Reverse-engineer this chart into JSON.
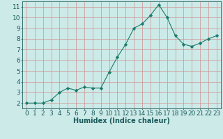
{
  "x": [
    0,
    1,
    2,
    3,
    4,
    5,
    6,
    7,
    8,
    9,
    10,
    11,
    12,
    13,
    14,
    15,
    16,
    17,
    18,
    19,
    20,
    21,
    22,
    23
  ],
  "y": [
    2.0,
    2.0,
    2.0,
    2.3,
    3.0,
    3.4,
    3.2,
    3.5,
    3.4,
    3.4,
    4.9,
    6.3,
    7.5,
    9.0,
    9.4,
    10.2,
    11.2,
    10.0,
    8.3,
    7.5,
    7.3,
    7.6,
    8.0,
    8.3
  ],
  "line_color": "#1a7a6a",
  "marker": "D",
  "marker_size": 2.2,
  "bg_color": "#cceae8",
  "grid_color": "#d09090",
  "xlabel": "Humidex (Indice chaleur)",
  "xlim": [
    -0.5,
    23.5
  ],
  "ylim": [
    1.5,
    11.5
  ],
  "yticks": [
    2,
    3,
    4,
    5,
    6,
    7,
    8,
    9,
    10,
    11
  ],
  "xticks": [
    0,
    1,
    2,
    3,
    4,
    5,
    6,
    7,
    8,
    9,
    10,
    11,
    12,
    13,
    14,
    15,
    16,
    17,
    18,
    19,
    20,
    21,
    22,
    23
  ],
  "tick_color": "#1a5a5a",
  "label_fontsize": 7,
  "tick_fontsize": 6.5,
  "xlabel_fontweight": "bold",
  "linewidth": 0.8
}
